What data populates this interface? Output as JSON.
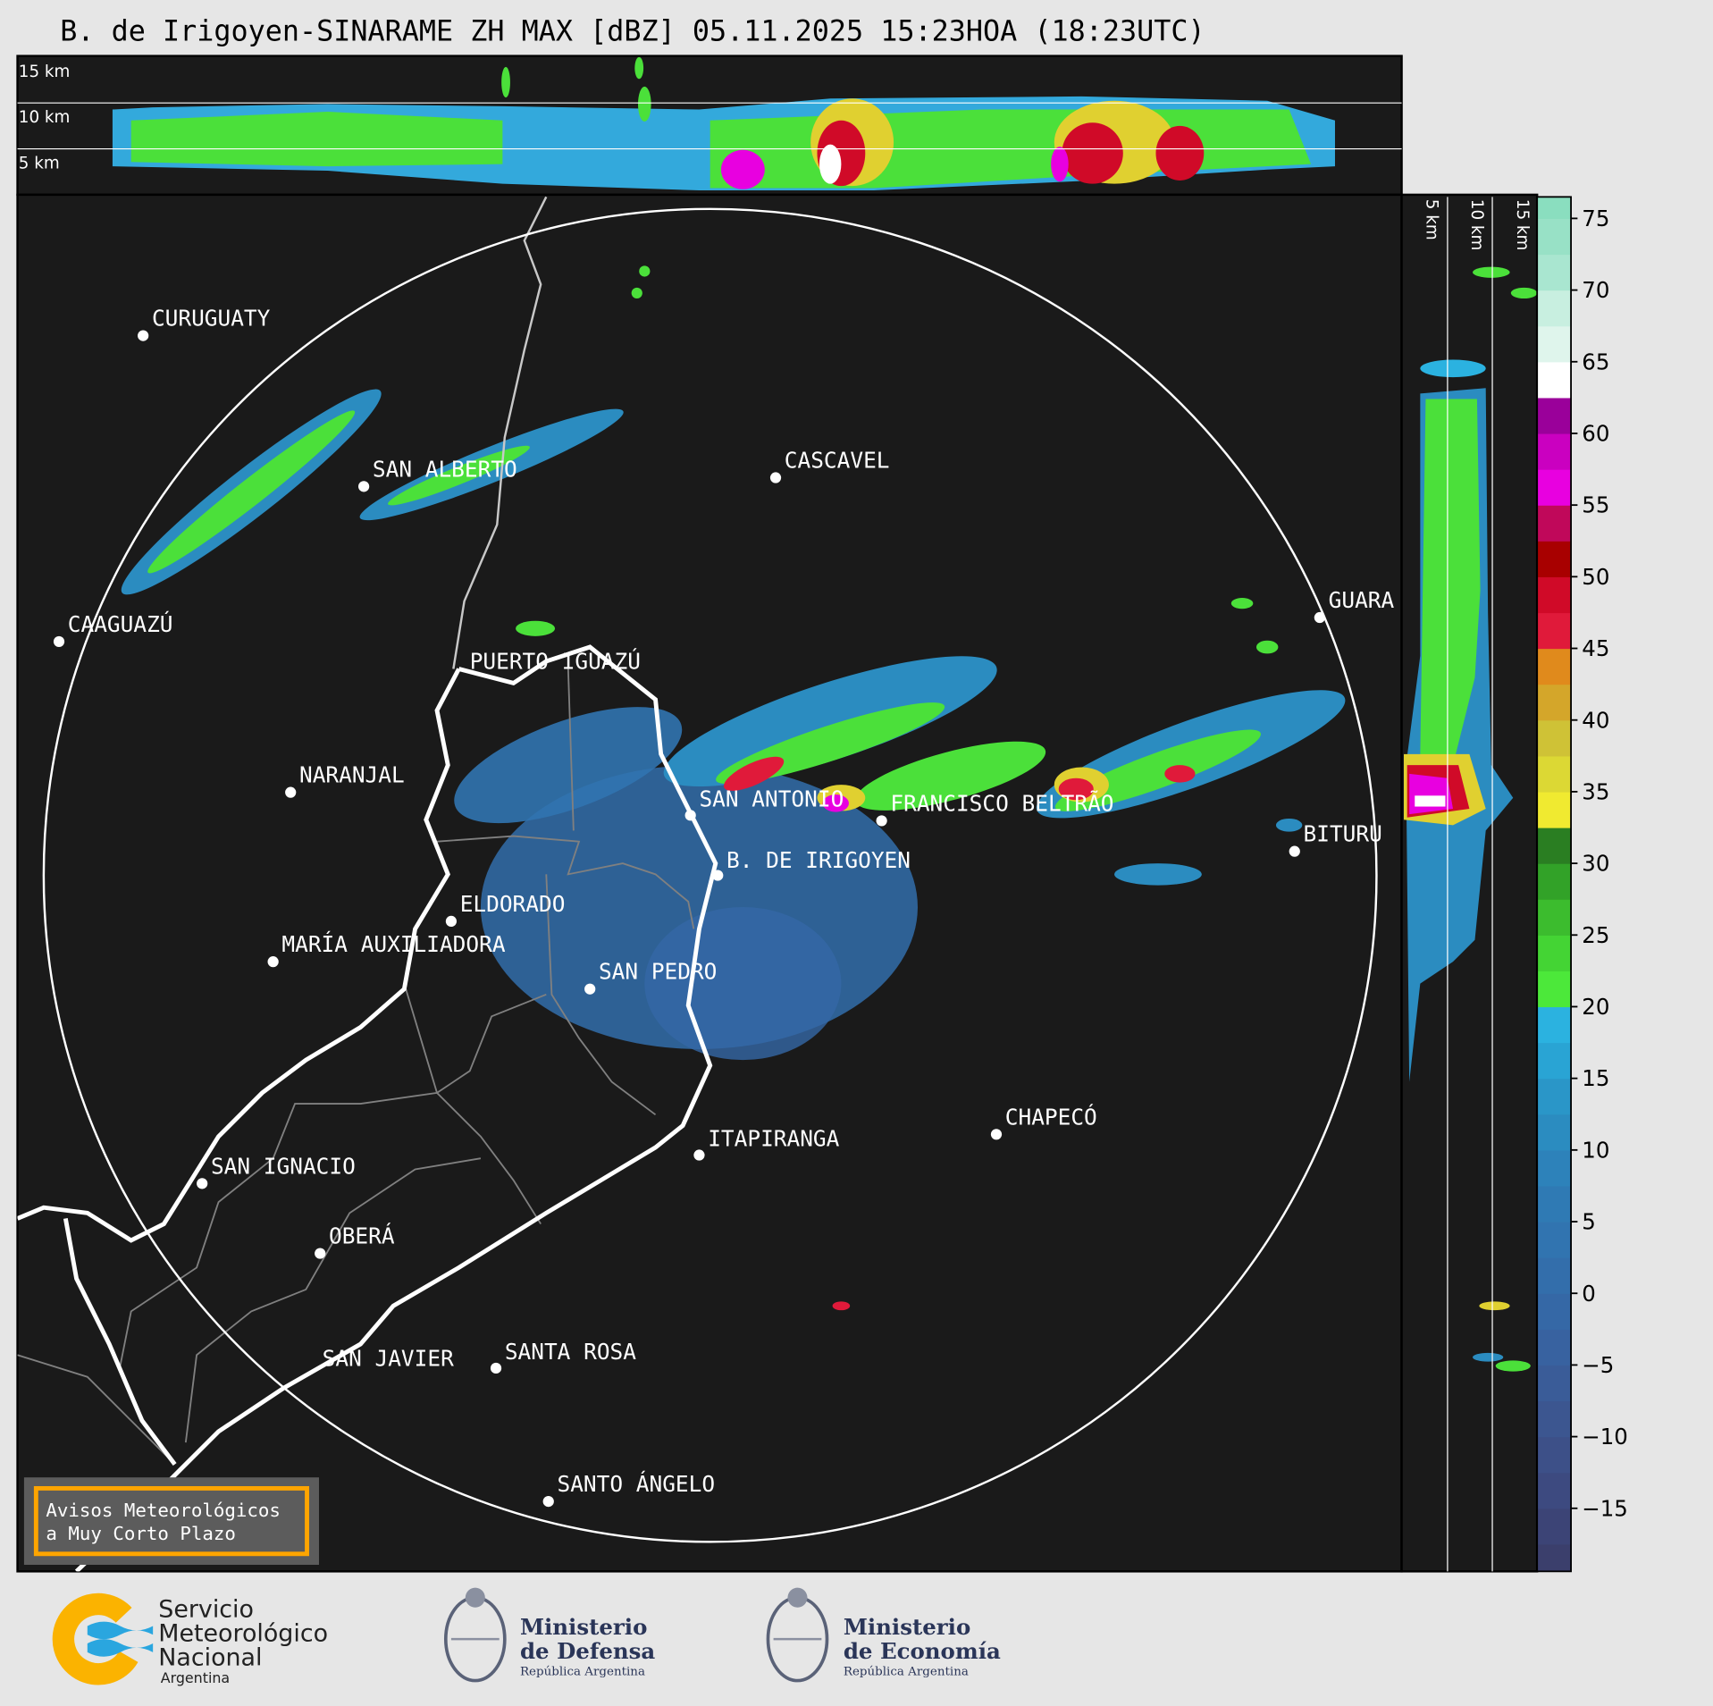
{
  "title": "B. de Irigoyen-SINARAME ZH MAX [dBZ] 05.11.2025 15:23HOA (18:23UTC)",
  "cross_section_top": {
    "labels": [
      "15 km",
      "10 km",
      "5 km"
    ]
  },
  "cross_section_right": {
    "labels": [
      "5 km",
      "10 km",
      "15 km"
    ]
  },
  "map": {
    "cities": [
      "CURUGUATY",
      "SAN ALBERTO",
      "CASCAVEL",
      "CAAGUAZÚ",
      "GUARA",
      "PUERTO IGUAZÚ",
      "NARANJAL",
      "SAN ANTONIO",
      "FRANCISCO BELTRÃO",
      "BITURU",
      "B. DE IRIGOYEN",
      "ELDORADO",
      "MARÍA AUXILIADORA",
      "SAN PEDRO",
      "CHAPECÓ",
      "ITAPIRANGA",
      "SAN IGNACIO",
      "OBERÁ",
      "SAN JAVIER",
      "SANTA ROSA",
      "SANTO ÁNGELO"
    ],
    "warning_box": {
      "line1": "Avisos Meteorológicos",
      "line2": "a Muy Corto Plazo",
      "border_color": "#ffa500"
    }
  },
  "colorbar": {
    "unit": "dBZ",
    "range": [
      -19.4,
      76.5
    ],
    "ticks": [
      "75",
      "70",
      "65",
      "60",
      "55",
      "50",
      "45",
      "40",
      "35",
      "30",
      "25",
      "20",
      "15",
      "10",
      "5",
      "0",
      "−5",
      "−10",
      "−15"
    ],
    "tick_values": [
      75,
      70,
      65,
      60,
      55,
      50,
      45,
      40,
      35,
      30,
      25,
      20,
      15,
      10,
      5,
      0,
      -5,
      -10,
      -15
    ],
    "bins": [
      {
        "from": -20,
        "color": "#3b3f6c"
      },
      {
        "from": -17.5,
        "color": "#3c4476"
      },
      {
        "from": -15,
        "color": "#3d4a80"
      },
      {
        "from": -12.5,
        "color": "#3d5088"
      },
      {
        "from": -10,
        "color": "#3c5690"
      },
      {
        "from": -7.5,
        "color": "#3a5c98"
      },
      {
        "from": -5,
        "color": "#3862a0"
      },
      {
        "from": -2.5,
        "color": "#3568a6"
      },
      {
        "from": 0,
        "color": "#336eab"
      },
      {
        "from": 2.5,
        "color": "#3174b0"
      },
      {
        "from": 5,
        "color": "#2f7ab4"
      },
      {
        "from": 7.5,
        "color": "#2d82ba"
      },
      {
        "from": 10,
        "color": "#2b8cc0"
      },
      {
        "from": 12.5,
        "color": "#2a96c8"
      },
      {
        "from": 15,
        "color": "#29a4d4"
      },
      {
        "from": 17.5,
        "color": "#2bb2e0"
      },
      {
        "from": 20,
        "color": "#4ce83a"
      },
      {
        "from": 22.5,
        "color": "#44d434"
      },
      {
        "from": 25,
        "color": "#3cbc2e"
      },
      {
        "from": 27.5,
        "color": "#32a228"
      },
      {
        "from": 30,
        "color": "#2a7e22"
      },
      {
        "from": 32.5,
        "color": "#f0ea30"
      },
      {
        "from": 35,
        "color": "#dcd834"
      },
      {
        "from": 37.5,
        "color": "#cfc236"
      },
      {
        "from": 40,
        "color": "#d4a62a"
      },
      {
        "from": 42.5,
        "color": "#e08a1c"
      },
      {
        "from": 45,
        "color": "#e01a3a"
      },
      {
        "from": 47.5,
        "color": "#d00a28"
      },
      {
        "from": 50,
        "color": "#a80000"
      },
      {
        "from": 52.5,
        "color": "#c0085a"
      },
      {
        "from": 55,
        "color": "#e800e0"
      },
      {
        "from": 57.5,
        "color": "#ca00c0"
      },
      {
        "from": 60,
        "color": "#9a009a"
      },
      {
        "from": 62.5,
        "color": "#ffffff"
      },
      {
        "from": 65,
        "color": "#dff5ec"
      },
      {
        "from": 67.5,
        "color": "#c8efe0"
      },
      {
        "from": 70,
        "color": "#a9e6d0"
      },
      {
        "from": 72.5,
        "color": "#98e1c6"
      },
      {
        "from": 75,
        "color": "#8adebf"
      }
    ]
  },
  "logos": {
    "smn": {
      "line1": "Servicio",
      "line2": "Meteorológico",
      "line3": "Nacional",
      "line4": "Argentina"
    },
    "defensa": {
      "line1": "Ministerio",
      "line2": "de Defensa",
      "line3": "República Argentina"
    },
    "economia": {
      "line1": "Ministerio",
      "line2": "de Economía",
      "line3": "República Argentina"
    }
  },
  "colors": {
    "background": "#e6e6e6",
    "panel": "#1a1a1a",
    "smn_orange": "#fbb300",
    "smn_blue": "#2aa6df",
    "ministry_navy": "#2a3558"
  }
}
